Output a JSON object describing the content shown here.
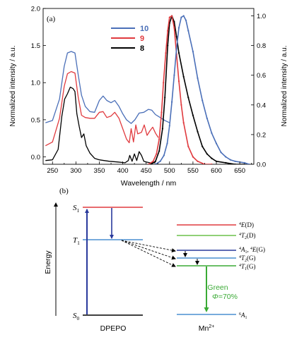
{
  "panel_a": {
    "label": "(a)",
    "xlabel": "Wavelength / nm",
    "ylabel_left": "Normalized intensity / a.u.",
    "ylabel_right": "Normalized intensity / a.u.",
    "x_ticks": [
      "250",
      "300",
      "350",
      "400",
      "450",
      "500",
      "550",
      "600",
      "650"
    ],
    "y_left_ticks": [
      "0.0",
      "0.5",
      "1.0",
      "1.5",
      "2.0"
    ],
    "y_right_ticks": [
      "0.0",
      "0.2",
      "0.4",
      "0.6",
      "0.8",
      "1.0"
    ],
    "legend": [
      {
        "label": "10",
        "color": "#4a6fb8"
      },
      {
        "label": "9",
        "color": "#e03a3e"
      },
      {
        "label": "8",
        "color": "#000000"
      }
    ]
  },
  "chart_data": {
    "type": "line",
    "xlabel": "Wavelength / nm",
    "ylabel": "Normalized intensity / a.u.",
    "xlim": [
      230,
      680
    ],
    "ylim_left": [
      -0.1,
      2.0
    ],
    "ylim_right": [
      0.0,
      1.05
    ],
    "series": [
      {
        "name": "10",
        "axis": "left",
        "color": "#4a6fb8",
        "x": [
          235,
          250,
          265,
          275,
          282,
          290,
          298,
          305,
          312,
          320,
          330,
          340,
          350,
          358,
          366,
          375,
          383,
          392,
          400,
          408,
          418,
          426,
          435,
          445,
          455,
          462,
          470,
          480,
          490,
          500
        ],
        "y": [
          0.46,
          0.49,
          0.78,
          1.22,
          1.4,
          1.42,
          1.4,
          1.1,
          0.83,
          0.68,
          0.61,
          0.6,
          0.76,
          0.82,
          0.76,
          0.73,
          0.76,
          0.68,
          0.58,
          0.5,
          0.45,
          0.5,
          0.59,
          0.6,
          0.64,
          0.63,
          0.57,
          0.53,
          0.49,
          0.46
        ]
      },
      {
        "name": "9",
        "axis": "left",
        "color": "#e03a3e",
        "x": [
          235,
          250,
          265,
          275,
          282,
          290,
          298,
          305,
          312,
          320,
          330,
          340,
          350,
          358,
          366,
          375,
          383,
          392,
          400,
          408,
          414,
          418,
          423,
          428,
          432,
          440,
          446,
          452,
          458,
          464,
          470,
          476
        ],
        "y": [
          0.15,
          0.2,
          0.52,
          0.95,
          1.12,
          1.15,
          1.13,
          0.8,
          0.56,
          0.53,
          0.52,
          0.52,
          0.6,
          0.61,
          0.53,
          0.55,
          0.6,
          0.52,
          0.38,
          0.24,
          0.19,
          0.38,
          0.2,
          0.43,
          0.31,
          0.33,
          0.43,
          0.29,
          0.35,
          0.4,
          0.32,
          0.26
        ]
      },
      {
        "name": "8",
        "axis": "left",
        "color": "#000000",
        "x": [
          235,
          250,
          262,
          270,
          276,
          282,
          288,
          294,
          298,
          302,
          307,
          312,
          317,
          322,
          330,
          340,
          350,
          360,
          372,
          390,
          405,
          412,
          415,
          420,
          425,
          430,
          435,
          440,
          445,
          450,
          458,
          470
        ],
        "y": [
          -0.05,
          -0.04,
          0.1,
          0.55,
          0.78,
          0.85,
          0.94,
          0.92,
          0.88,
          0.58,
          0.41,
          0.26,
          0.31,
          0.15,
          0.05,
          -0.02,
          -0.04,
          -0.05,
          -0.06,
          -0.07,
          -0.08,
          -0.05,
          0.02,
          -0.06,
          0.04,
          -0.05,
          0.07,
          0.02,
          -0.06,
          -0.07,
          -0.08,
          -0.08
        ]
      },
      {
        "name": "8",
        "axis": "right",
        "color": "#000000",
        "x": [
          460,
          470,
          478,
          485,
          490,
          496,
          500,
          505,
          510,
          515,
          520,
          530,
          540,
          550,
          560,
          570,
          580,
          590,
          600,
          620,
          640,
          660
        ],
        "y": [
          0.0,
          0.02,
          0.09,
          0.24,
          0.45,
          0.8,
          0.95,
          1.0,
          0.96,
          0.86,
          0.75,
          0.59,
          0.45,
          0.33,
          0.22,
          0.12,
          0.07,
          0.04,
          0.02,
          0.01,
          0.0,
          0.0
        ]
      },
      {
        "name": "9",
        "axis": "right",
        "color": "#e03a3e",
        "x": [
          455,
          465,
          472,
          478,
          483,
          487,
          492,
          496,
          500,
          505,
          510,
          515,
          520,
          525,
          530,
          540,
          550,
          560,
          575,
          590
        ],
        "y": [
          0.0,
          0.02,
          0.07,
          0.17,
          0.35,
          0.55,
          0.75,
          0.9,
          0.99,
          1.0,
          0.92,
          0.74,
          0.56,
          0.4,
          0.28,
          0.12,
          0.05,
          0.02,
          0.0,
          0.0
        ]
      },
      {
        "name": "10",
        "axis": "right",
        "color": "#4a6fb8",
        "x": [
          470,
          480,
          488,
          495,
          500,
          505,
          510,
          515,
          520,
          525,
          530,
          535,
          540,
          550,
          560,
          570,
          580,
          590,
          600,
          610,
          620,
          630,
          640,
          660,
          670
        ],
        "y": [
          0.0,
          0.02,
          0.06,
          0.14,
          0.26,
          0.42,
          0.6,
          0.78,
          0.92,
          0.99,
          1.0,
          0.97,
          0.9,
          0.76,
          0.58,
          0.43,
          0.31,
          0.21,
          0.14,
          0.08,
          0.05,
          0.03,
          0.02,
          0.01,
          0.0
        ]
      }
    ]
  },
  "panel_b": {
    "label": "(b)",
    "energy_label": "Energy",
    "s1": "S",
    "s1_sub": "1",
    "t1": "T",
    "t1_sub": "1",
    "s0": "S",
    "s0_sub": "0",
    "host_name": "DPEPO",
    "mn_name": "Mn",
    "mn_sup": "2+",
    "levels": [
      {
        "sup": "4",
        "name": "E",
        "suffix": "(D)",
        "color": "#e03a3e"
      },
      {
        "sup": "4",
        "name": "T",
        "sub": "2",
        "suffix": "(D)",
        "color": "#6cc04a"
      },
      {
        "sup": "4",
        "name": "A",
        "sub": "1",
        "suffix": ", ",
        "sup2": "4",
        "name2": "E",
        "suffix2": "(G)",
        "color": "#2a3a9c"
      },
      {
        "sup": "4",
        "name": "T",
        "sub": "2",
        "suffix": "(G)",
        "color": "#4a8fd0"
      },
      {
        "sup": "4",
        "name": "T",
        "sub": "1",
        "suffix": "(G)",
        "color": "#3aaa35"
      }
    ],
    "ground": {
      "sup": "6",
      "name": "A",
      "sub": "1",
      "color": "#4a8fd0"
    },
    "green_label": "Green",
    "phi_label": "Φ",
    "phi_value": "=70%"
  }
}
